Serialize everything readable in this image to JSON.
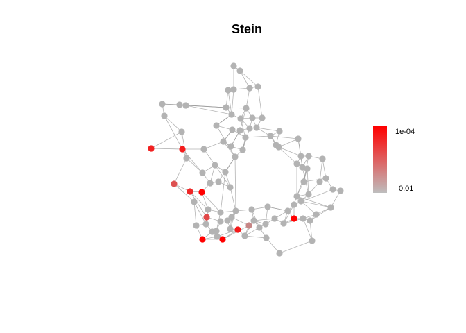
{
  "title": "Stein",
  "legend": {
    "top_label": "1e-04",
    "bottom_label": "0.01",
    "color_low": "#bebebe",
    "color_high": "#ff0000"
  },
  "colors": {
    "edge": "#9a9a9a",
    "node_default": "#b3b3b3"
  }
}
